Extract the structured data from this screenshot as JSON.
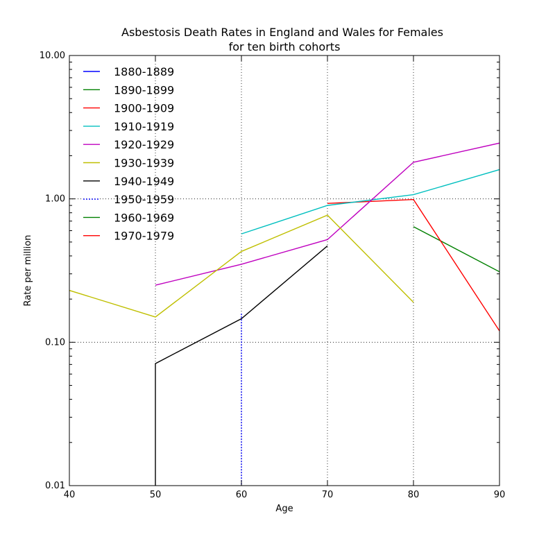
{
  "chart_data": {
    "type": "line",
    "title": "Asbestosis Death Rates in England and Wales for Females",
    "subtitle": "for ten birth cohorts",
    "xlabel": "Age",
    "ylabel": "Rate per million",
    "xlim": [
      40,
      90
    ],
    "ylim": [
      0.01,
      10
    ],
    "yscale": "log",
    "grid": true,
    "legend_position": "top-left",
    "x_ticks": [
      40,
      50,
      60,
      70,
      80,
      90
    ],
    "x_tick_labels": [
      "40",
      "50",
      "60",
      "70",
      "80",
      "90"
    ],
    "y_ticks": [
      0.01,
      0.1,
      1,
      10
    ],
    "y_tick_labels": [
      "0.01",
      "0.10",
      "1.00",
      "10.00"
    ],
    "series": [
      {
        "name": "1880-1889",
        "color": "#0000ff",
        "dashed": false,
        "points": []
      },
      {
        "name": "1890-1899",
        "color": "#008000",
        "dashed": false,
        "points": [
          [
            80,
            0.64
          ],
          [
            90,
            0.31
          ]
        ]
      },
      {
        "name": "1900-1909",
        "color": "#ff0000",
        "dashed": false,
        "points": [
          [
            70,
            0.93
          ],
          [
            80,
            0.99
          ],
          [
            90,
            0.12
          ]
        ]
      },
      {
        "name": "1910-1919",
        "color": "#00bfbf",
        "dashed": false,
        "points": [
          [
            60,
            0.57
          ],
          [
            70,
            0.9
          ],
          [
            80,
            1.07
          ],
          [
            90,
            1.6
          ]
        ]
      },
      {
        "name": "1920-1929",
        "color": "#bf00bf",
        "dashed": false,
        "points": [
          [
            50,
            0.25
          ],
          [
            60,
            0.35
          ],
          [
            70,
            0.52
          ],
          [
            80,
            1.8
          ],
          [
            90,
            2.45
          ]
        ]
      },
      {
        "name": "1930-1939",
        "color": "#bfbf00",
        "dashed": false,
        "points": [
          [
            40,
            0.23
          ],
          [
            50,
            0.15
          ],
          [
            60,
            0.43
          ],
          [
            70,
            0.77
          ],
          [
            80,
            0.19
          ]
        ]
      },
      {
        "name": "1940-1949",
        "color": "#000000",
        "dashed": false,
        "points": [
          [
            50,
            0.001
          ],
          [
            50,
            0.071
          ],
          [
            60,
            0.146
          ],
          [
            70,
            0.47
          ]
        ]
      },
      {
        "name": "1950-1959",
        "color": "#0000ff",
        "dashed": true,
        "points": [
          [
            60,
            0.001
          ],
          [
            60,
            0.16
          ]
        ]
      },
      {
        "name": "1960-1969",
        "color": "#008000",
        "dashed": false,
        "points": []
      },
      {
        "name": "1970-1979",
        "color": "#ff0000",
        "dashed": false,
        "points": []
      }
    ]
  }
}
